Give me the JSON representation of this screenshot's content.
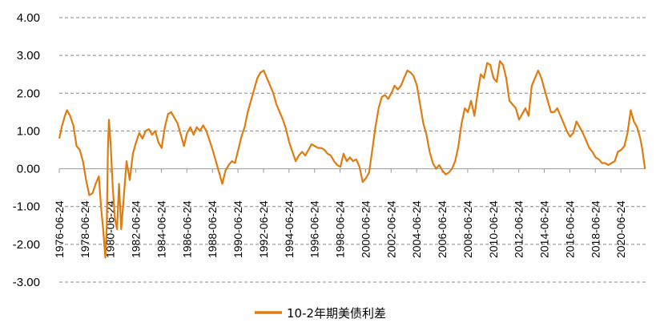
{
  "chart_data": {
    "type": "line",
    "title": "",
    "xlabel": "",
    "ylabel": "",
    "ylim": [
      -3,
      4
    ],
    "y_ticks": [
      4,
      3,
      2,
      1,
      0,
      -1,
      -2,
      -3
    ],
    "y_tick_labels": [
      "4.00",
      "3.00",
      "2.00",
      "1.00",
      "0.00",
      "-1.00",
      "-2.00",
      "-3.00"
    ],
    "x_tick_labels": [
      "1976-06-24",
      "1978-06-24",
      "1980-06-24",
      "1982-06-24",
      "1984-06-24",
      "1986-06-24",
      "1988-06-24",
      "1990-06-24",
      "1992-06-24",
      "1994-06-24",
      "1996-06-24",
      "1998-06-24",
      "2000-06-24",
      "2002-06-24",
      "2004-06-24",
      "2006-06-24",
      "2008-06-24",
      "2010-06-24",
      "2012-06-24",
      "2014-06-24",
      "2016-06-24",
      "2018-06-24",
      "2020-06-24"
    ],
    "grid": "horizontal dashed",
    "legend_position": "bottom",
    "series": [
      {
        "name": "10-2年期美债利差",
        "color": "#E07B10",
        "points": [
          [
            "1976-06-24",
            0.8
          ],
          [
            "1976-09-01",
            1.1
          ],
          [
            "1976-12-01",
            1.4
          ],
          [
            "1977-02-01",
            1.55
          ],
          [
            "1977-05-01",
            1.4
          ],
          [
            "1977-08-01",
            1.15
          ],
          [
            "1977-11-01",
            0.6
          ],
          [
            "1978-02-01",
            0.5
          ],
          [
            "1978-05-01",
            0.2
          ],
          [
            "1978-08-01",
            -0.3
          ],
          [
            "1978-11-01",
            -0.7
          ],
          [
            "1979-02-01",
            -0.65
          ],
          [
            "1979-05-01",
            -0.4
          ],
          [
            "1979-08-01",
            -0.2
          ],
          [
            "1979-10-01",
            -1.0
          ],
          [
            "1979-12-01",
            -1.6
          ],
          [
            "1980-02-01",
            -2.35
          ],
          [
            "1980-03-15",
            -1.5
          ],
          [
            "1980-04-15",
            0.5
          ],
          [
            "1980-05-15",
            1.3
          ],
          [
            "1980-07-01",
            0.7
          ],
          [
            "1980-09-01",
            -0.5
          ],
          [
            "1980-11-01",
            -1.3
          ],
          [
            "1981-01-01",
            -1.6
          ],
          [
            "1981-03-01",
            -0.4
          ],
          [
            "1981-05-01",
            -1.6
          ],
          [
            "1981-07-01",
            -0.9
          ],
          [
            "1981-10-01",
            0.2
          ],
          [
            "1982-01-01",
            -0.3
          ],
          [
            "1982-04-01",
            0.4
          ],
          [
            "1982-07-01",
            0.7
          ],
          [
            "1982-10-01",
            0.95
          ],
          [
            "1983-01-01",
            0.8
          ],
          [
            "1983-04-01",
            1.0
          ],
          [
            "1983-07-01",
            1.05
          ],
          [
            "1983-10-01",
            0.9
          ],
          [
            "1984-01-01",
            1.0
          ],
          [
            "1984-04-01",
            0.7
          ],
          [
            "1984-07-01",
            0.55
          ],
          [
            "1984-10-01",
            1.1
          ],
          [
            "1985-01-01",
            1.45
          ],
          [
            "1985-04-01",
            1.5
          ],
          [
            "1985-07-01",
            1.35
          ],
          [
            "1985-10-01",
            1.2
          ],
          [
            "1986-01-01",
            0.9
          ],
          [
            "1986-04-01",
            0.6
          ],
          [
            "1986-07-01",
            0.95
          ],
          [
            "1986-10-01",
            1.1
          ],
          [
            "1987-01-01",
            0.9
          ],
          [
            "1987-04-01",
            1.1
          ],
          [
            "1987-07-01",
            1.0
          ],
          [
            "1987-10-01",
            1.15
          ],
          [
            "1988-01-01",
            1.0
          ],
          [
            "1988-04-01",
            0.75
          ],
          [
            "1988-07-01",
            0.5
          ],
          [
            "1988-10-01",
            0.2
          ],
          [
            "1989-01-01",
            -0.1
          ],
          [
            "1989-04-01",
            -0.4
          ],
          [
            "1989-07-01",
            -0.05
          ],
          [
            "1989-10-01",
            0.1
          ],
          [
            "1990-01-01",
            0.2
          ],
          [
            "1990-04-01",
            0.15
          ],
          [
            "1990-07-01",
            0.5
          ],
          [
            "1990-10-01",
            0.85
          ],
          [
            "1991-01-01",
            1.1
          ],
          [
            "1991-04-01",
            1.5
          ],
          [
            "1991-07-01",
            1.8
          ],
          [
            "1991-10-01",
            2.1
          ],
          [
            "1992-01-01",
            2.4
          ],
          [
            "1992-04-01",
            2.55
          ],
          [
            "1992-07-01",
            2.6
          ],
          [
            "1992-10-01",
            2.4
          ],
          [
            "1993-01-01",
            2.2
          ],
          [
            "1993-04-01",
            2.0
          ],
          [
            "1993-07-01",
            1.7
          ],
          [
            "1993-10-01",
            1.5
          ],
          [
            "1994-01-01",
            1.3
          ],
          [
            "1994-04-01",
            1.05
          ],
          [
            "1994-07-01",
            0.7
          ],
          [
            "1994-10-01",
            0.45
          ],
          [
            "1995-01-01",
            0.2
          ],
          [
            "1995-04-01",
            0.35
          ],
          [
            "1995-07-01",
            0.45
          ],
          [
            "1995-10-01",
            0.35
          ],
          [
            "1996-01-01",
            0.5
          ],
          [
            "1996-04-01",
            0.65
          ],
          [
            "1996-07-01",
            0.6
          ],
          [
            "1996-10-01",
            0.55
          ],
          [
            "1997-01-01",
            0.55
          ],
          [
            "1997-04-01",
            0.5
          ],
          [
            "1997-07-01",
            0.4
          ],
          [
            "1997-10-01",
            0.35
          ],
          [
            "1998-01-01",
            0.2
          ],
          [
            "1998-04-01",
            0.1
          ],
          [
            "1998-07-01",
            0.05
          ],
          [
            "1998-10-01",
            0.4
          ],
          [
            "1999-01-01",
            0.2
          ],
          [
            "1999-04-01",
            0.3
          ],
          [
            "1999-07-01",
            0.2
          ],
          [
            "1999-10-01",
            0.25
          ],
          [
            "2000-01-01",
            0.05
          ],
          [
            "2000-04-01",
            -0.35
          ],
          [
            "2000-07-01",
            -0.25
          ],
          [
            "2000-10-01",
            -0.1
          ],
          [
            "2001-01-01",
            0.5
          ],
          [
            "2001-04-01",
            1.1
          ],
          [
            "2001-07-01",
            1.6
          ],
          [
            "2001-10-01",
            1.9
          ],
          [
            "2002-01-01",
            1.95
          ],
          [
            "2002-04-01",
            1.85
          ],
          [
            "2002-07-01",
            2.0
          ],
          [
            "2002-10-01",
            2.2
          ],
          [
            "2003-01-01",
            2.1
          ],
          [
            "2003-04-01",
            2.2
          ],
          [
            "2003-07-01",
            2.4
          ],
          [
            "2003-10-01",
            2.6
          ],
          [
            "2004-01-01",
            2.55
          ],
          [
            "2004-04-01",
            2.45
          ],
          [
            "2004-07-01",
            2.2
          ],
          [
            "2004-10-01",
            1.7
          ],
          [
            "2005-01-01",
            1.2
          ],
          [
            "2005-04-01",
            0.9
          ],
          [
            "2005-07-01",
            0.45
          ],
          [
            "2005-10-01",
            0.15
          ],
          [
            "2006-01-01",
            0.0
          ],
          [
            "2006-04-01",
            0.1
          ],
          [
            "2006-07-01",
            -0.05
          ],
          [
            "2006-10-01",
            -0.15
          ],
          [
            "2007-01-01",
            -0.1
          ],
          [
            "2007-04-01",
            0.0
          ],
          [
            "2007-07-01",
            0.2
          ],
          [
            "2007-10-01",
            0.6
          ],
          [
            "2008-01-01",
            1.2
          ],
          [
            "2008-04-01",
            1.6
          ],
          [
            "2008-07-01",
            1.5
          ],
          [
            "2008-10-01",
            1.8
          ],
          [
            "2009-01-01",
            1.4
          ],
          [
            "2009-04-01",
            2.0
          ],
          [
            "2009-07-01",
            2.5
          ],
          [
            "2009-10-01",
            2.4
          ],
          [
            "2010-01-01",
            2.8
          ],
          [
            "2010-04-01",
            2.75
          ],
          [
            "2010-07-01",
            2.4
          ],
          [
            "2010-10-01",
            2.3
          ],
          [
            "2011-01-01",
            2.85
          ],
          [
            "2011-04-01",
            2.75
          ],
          [
            "2011-07-01",
            2.4
          ],
          [
            "2011-10-01",
            1.8
          ],
          [
            "2012-01-01",
            1.7
          ],
          [
            "2012-04-01",
            1.6
          ],
          [
            "2012-07-01",
            1.3
          ],
          [
            "2012-10-01",
            1.45
          ],
          [
            "2013-01-01",
            1.6
          ],
          [
            "2013-04-01",
            1.4
          ],
          [
            "2013-07-01",
            2.2
          ],
          [
            "2013-10-01",
            2.4
          ],
          [
            "2014-01-01",
            2.6
          ],
          [
            "2014-04-01",
            2.4
          ],
          [
            "2014-07-01",
            2.1
          ],
          [
            "2014-10-01",
            1.8
          ],
          [
            "2015-01-01",
            1.5
          ],
          [
            "2015-04-01",
            1.5
          ],
          [
            "2015-07-01",
            1.6
          ],
          [
            "2015-10-01",
            1.4
          ],
          [
            "2016-01-01",
            1.2
          ],
          [
            "2016-04-01",
            1.0
          ],
          [
            "2016-07-01",
            0.85
          ],
          [
            "2016-10-01",
            0.95
          ],
          [
            "2017-01-01",
            1.25
          ],
          [
            "2017-04-01",
            1.1
          ],
          [
            "2017-07-01",
            0.95
          ],
          [
            "2017-10-01",
            0.75
          ],
          [
            "2018-01-01",
            0.55
          ],
          [
            "2018-04-01",
            0.45
          ],
          [
            "2018-07-01",
            0.3
          ],
          [
            "2018-10-01",
            0.25
          ],
          [
            "2019-01-01",
            0.15
          ],
          [
            "2019-04-01",
            0.15
          ],
          [
            "2019-07-01",
            0.1
          ],
          [
            "2019-10-01",
            0.15
          ],
          [
            "2020-01-01",
            0.2
          ],
          [
            "2020-04-01",
            0.45
          ],
          [
            "2020-07-01",
            0.5
          ],
          [
            "2020-10-01",
            0.6
          ],
          [
            "2021-01-01",
            0.95
          ],
          [
            "2021-04-01",
            1.55
          ],
          [
            "2021-07-01",
            1.25
          ],
          [
            "2021-10-01",
            1.1
          ],
          [
            "2022-01-01",
            0.8
          ],
          [
            "2022-03-01",
            0.5
          ],
          [
            "2022-04-15",
            0.2
          ],
          [
            "2022-05-15",
            0.0
          ]
        ]
      }
    ]
  }
}
